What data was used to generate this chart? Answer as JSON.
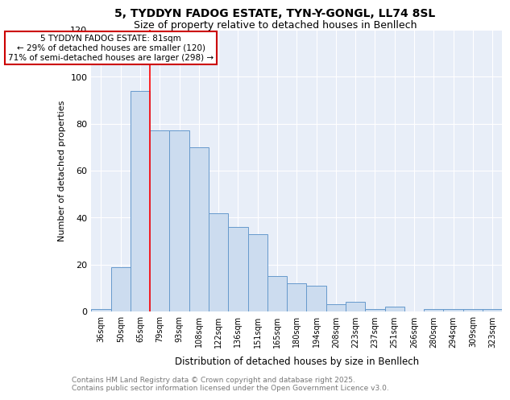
{
  "title1": "5, TYDDYN FADOG ESTATE, TYN-Y-GONGL, LL74 8SL",
  "title2": "Size of property relative to detached houses in Benllech",
  "xlabel": "Distribution of detached houses by size in Benllech",
  "ylabel": "Number of detached properties",
  "categories": [
    "36sqm",
    "50sqm",
    "65sqm",
    "79sqm",
    "93sqm",
    "108sqm",
    "122sqm",
    "136sqm",
    "151sqm",
    "165sqm",
    "180sqm",
    "194sqm",
    "208sqm",
    "223sqm",
    "237sqm",
    "251sqm",
    "266sqm",
    "280sqm",
    "294sqm",
    "309sqm",
    "323sqm"
  ],
  "values": [
    1,
    19,
    94,
    77,
    77,
    70,
    42,
    36,
    33,
    15,
    12,
    11,
    3,
    4,
    1,
    2,
    0,
    1,
    1,
    1,
    1
  ],
  "bar_color": "#ccdcef",
  "bar_edge_color": "#6699cc",
  "red_line_index": 3,
  "property_label": "5 TYDDYN FADOG ESTATE: 81sqm",
  "annotation_line1": "← 29% of detached houses are smaller (120)",
  "annotation_line2": "71% of semi-detached houses are larger (298) →",
  "ylim": [
    0,
    120
  ],
  "yticks": [
    0,
    20,
    40,
    60,
    80,
    100,
    120
  ],
  "bg_color": "#e8eef8",
  "grid_color": "#ffffff",
  "footer_text": "Contains HM Land Registry data © Crown copyright and database right 2025.\nContains public sector information licensed under the Open Government Licence v3.0.",
  "title_fontsize": 10,
  "subtitle_fontsize": 9,
  "annotation_box_color": "#ffffff",
  "annotation_box_edge": "#cc0000",
  "footer_color": "#777777",
  "footer_fontsize": 6.5
}
